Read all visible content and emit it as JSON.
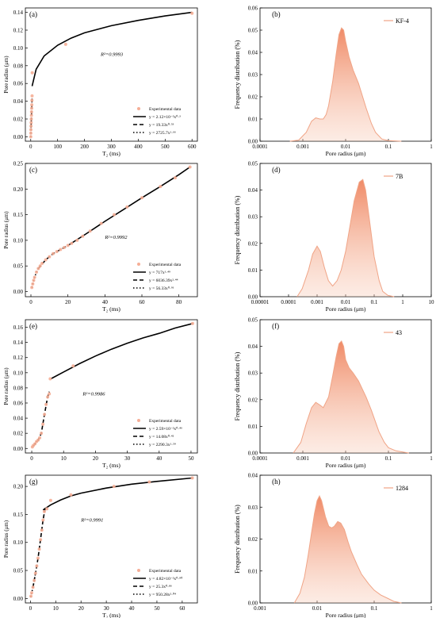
{
  "colors": {
    "marker": "#F5AE96",
    "density_fill": "#F08A66",
    "density_fill_light": "#F8C9B4",
    "density_line": "#F0A486",
    "fit_line": "#000000"
  },
  "chart_data": [
    {
      "id": "a",
      "type": "scatter",
      "panel_label": "(a)",
      "xlabel": "T₂ (ms)",
      "ylabel": "Pore radius (μm)",
      "xlim": [
        -20,
        620
      ],
      "ylim": [
        -0.005,
        0.145
      ],
      "xticks": [
        0,
        100,
        200,
        300,
        400,
        500,
        600
      ],
      "yticks": [
        0.0,
        0.02,
        0.04,
        0.06,
        0.08,
        0.1,
        0.12,
        0.14
      ],
      "ytick_decimals": 2,
      "annotation": "R²=0.9993",
      "annotation_pos": [
        260,
        0.091
      ],
      "legend": {
        "title": "Experimental data",
        "entries": [
          {
            "label": "y = 2.12×10⁻²x⁰·³",
            "style": "solid"
          },
          {
            "label": "y = 19.33x⁰·⁵³",
            "style": "dashed"
          },
          {
            "label": "y = 2725.7x¹·⁶⁶",
            "style": "dotted"
          }
        ]
      },
      "points": [
        [
          0.1,
          0.0
        ],
        [
          0.3,
          0.004
        ],
        [
          0.6,
          0.008
        ],
        [
          1,
          0.012
        ],
        [
          1.5,
          0.016
        ],
        [
          2,
          0.02
        ],
        [
          2.5,
          0.024
        ],
        [
          3,
          0.028
        ],
        [
          3.5,
          0.032
        ],
        [
          4,
          0.036
        ],
        [
          4.5,
          0.041
        ],
        [
          5,
          0.046
        ],
        [
          5.5,
          0.072
        ],
        [
          130,
          0.104
        ],
        [
          600,
          0.139
        ]
      ],
      "fits": [
        {
          "style": "solid",
          "x": [
            5,
            20,
            50,
            100,
            150,
            200,
            300,
            400,
            500,
            600
          ],
          "y": [
            0.057,
            0.076,
            0.091,
            0.103,
            0.111,
            0.117,
            0.125,
            0.131,
            0.136,
            0.14
          ]
        },
        {
          "style": "dashed",
          "x": [
            1,
            2,
            3,
            4,
            5
          ],
          "y": [
            0.01,
            0.018,
            0.026,
            0.034,
            0.044
          ]
        },
        {
          "style": "dotted",
          "x": [
            0,
            0.5,
            1,
            1.5,
            2
          ],
          "y": [
            0.0,
            0.003,
            0.007,
            0.011,
            0.016
          ]
        }
      ]
    },
    {
      "id": "b",
      "type": "area",
      "panel_label": "(b)",
      "xlabel": "Pore radius (μm)",
      "ylabel": "Frequency distribution (%)",
      "xscale": "log",
      "xlim": [
        0.0001,
        1
      ],
      "xticks": [
        0.0001,
        0.001,
        0.01,
        0.1,
        1
      ],
      "xticklabels": [
        "0.0001",
        "0.001",
        "0.01",
        "0.1",
        "1"
      ],
      "ylim": [
        0,
        0.06
      ],
      "yticks": [
        0.0,
        0.01,
        0.02,
        0.03,
        0.04,
        0.05,
        0.06
      ],
      "ytick_decimals": 2,
      "series": [
        {
          "name": "KF-4",
          "x": [
            0.0005,
            0.0008,
            0.0012,
            0.0016,
            0.002,
            0.0025,
            0.003,
            0.0035,
            0.004,
            0.005,
            0.006,
            0.007,
            0.008,
            0.009,
            0.01,
            0.012,
            0.015,
            0.02,
            0.03,
            0.04,
            0.05,
            0.07,
            0.1,
            0.2
          ],
          "y": [
            0.0,
            0.0005,
            0.004,
            0.009,
            0.0105,
            0.01,
            0.01,
            0.012,
            0.016,
            0.027,
            0.039,
            0.048,
            0.051,
            0.05,
            0.045,
            0.038,
            0.032,
            0.026,
            0.015,
            0.008,
            0.004,
            0.001,
            0.0003,
            0.0
          ]
        }
      ]
    },
    {
      "id": "c",
      "type": "scatter",
      "panel_label": "(c)",
      "xlabel": "T₂ (ms)",
      "ylabel": "Pore radius (μm)",
      "xlim": [
        -3,
        90
      ],
      "ylim": [
        -0.01,
        0.25
      ],
      "xticks": [
        0,
        20,
        40,
        60,
        80
      ],
      "yticks": [
        0.0,
        0.05,
        0.1,
        0.15,
        0.2,
        0.25
      ],
      "ytick_decimals": 2,
      "annotation": "R²=0.9992",
      "annotation_pos": [
        40,
        0.103
      ],
      "legend": {
        "title": "Experimental data",
        "entries": [
          {
            "label": "y = 717x¹·⁴⁹",
            "style": "solid"
          },
          {
            "label": "y = 6036.39x²·⁴⁴",
            "style": "dashed"
          },
          {
            "label": "y = 56.33x⁰·⁹¹",
            "style": "dotted"
          }
        ]
      },
      "points": [
        [
          0.5,
          0.008
        ],
        [
          1,
          0.015
        ],
        [
          1.5,
          0.022
        ],
        [
          2,
          0.028
        ],
        [
          3,
          0.038
        ],
        [
          4,
          0.045
        ],
        [
          5,
          0.05
        ],
        [
          6,
          0.055
        ],
        [
          8,
          0.062
        ],
        [
          10,
          0.068
        ],
        [
          12,
          0.074
        ],
        [
          14,
          0.078
        ],
        [
          16,
          0.082
        ],
        [
          18,
          0.086
        ],
        [
          20,
          0.09
        ],
        [
          22,
          0.094
        ],
        [
          25,
          0.1
        ],
        [
          28,
          0.108
        ],
        [
          32,
          0.118
        ],
        [
          38,
          0.133
        ],
        [
          45,
          0.15
        ],
        [
          52,
          0.165
        ],
        [
          60,
          0.183
        ],
        [
          70,
          0.205
        ],
        [
          78,
          0.222
        ],
        [
          86,
          0.243
        ]
      ],
      "fits": [
        {
          "style": "solid",
          "x": [
            20,
            30,
            40,
            50,
            60,
            70,
            80,
            86
          ],
          "y": [
            0.09,
            0.113,
            0.137,
            0.16,
            0.183,
            0.205,
            0.228,
            0.243
          ]
        },
        {
          "style": "dashed",
          "x": [
            4,
            8,
            12,
            16,
            20
          ],
          "y": [
            0.045,
            0.062,
            0.074,
            0.082,
            0.09
          ]
        },
        {
          "style": "dotted",
          "x": [
            0.5,
            1,
            2,
            3,
            4
          ],
          "y": [
            0.008,
            0.015,
            0.028,
            0.038,
            0.045
          ]
        }
      ]
    },
    {
      "id": "d",
      "type": "area",
      "panel_label": "(d)",
      "xlabel": "Pore radius (μm)",
      "ylabel": "Frequency distribution (%)",
      "xscale": "log",
      "xlim": [
        1e-05,
        10
      ],
      "xticks": [
        1e-05,
        0.0001,
        0.001,
        0.01,
        0.1,
        1,
        10
      ],
      "xticklabels": [
        "0.00001",
        "0.0001",
        "0.001",
        "0.01",
        "0.1",
        "1",
        "10"
      ],
      "ylim": [
        0,
        0.05
      ],
      "yticks": [
        0.0,
        0.01,
        0.02,
        0.03,
        0.04,
        0.05
      ],
      "ytick_decimals": 2,
      "series": [
        {
          "name": "7B",
          "x": [
            0.0002,
            0.0003,
            0.0005,
            0.0007,
            0.001,
            0.0013,
            0.0018,
            0.0025,
            0.0035,
            0.005,
            0.007,
            0.01,
            0.015,
            0.02,
            0.03,
            0.04,
            0.05,
            0.07,
            0.1,
            0.15,
            0.2,
            0.3,
            0.5
          ],
          "y": [
            0.0,
            0.003,
            0.01,
            0.016,
            0.019,
            0.017,
            0.011,
            0.006,
            0.004,
            0.006,
            0.01,
            0.017,
            0.028,
            0.036,
            0.043,
            0.044,
            0.04,
            0.028,
            0.015,
            0.006,
            0.002,
            0.0005,
            0.0
          ]
        }
      ]
    },
    {
      "id": "e",
      "type": "scatter",
      "panel_label": "(e)",
      "xlabel": "T₂ (ms)",
      "ylabel": "Pore radius (μm)",
      "xlim": [
        -2,
        52
      ],
      "ylim": [
        -0.006,
        0.17
      ],
      "xticks": [
        0,
        10,
        20,
        30,
        40,
        50
      ],
      "yticks": [
        0.0,
        0.02,
        0.04,
        0.06,
        0.08,
        0.1,
        0.12,
        0.14,
        0.16
      ],
      "ytick_decimals": 2,
      "annotation": "R²=0.9986",
      "annotation_pos": [
        16,
        0.07
      ],
      "legend": {
        "title": "Experimental data",
        "entries": [
          {
            "label": "y = 2.59×10⁻²x⁰·⁴⁶",
            "style": "solid"
          },
          {
            "label": "y = 14.08x⁰·⁴²",
            "style": "dashed"
          },
          {
            "label": "y = 2290.3x¹·⁵⁹",
            "style": "dotted"
          }
        ]
      },
      "points": [
        [
          0.2,
          0.002
        ],
        [
          0.5,
          0.004
        ],
        [
          1,
          0.006
        ],
        [
          1.5,
          0.009
        ],
        [
          2,
          0.011
        ],
        [
          2.5,
          0.014
        ],
        [
          3,
          0.02
        ],
        [
          3.5,
          0.032
        ],
        [
          4,
          0.045
        ],
        [
          4.5,
          0.058
        ],
        [
          5,
          0.068
        ],
        [
          5.5,
          0.072
        ],
        [
          5.8,
          0.092
        ],
        [
          13,
          0.109
        ],
        [
          50.5,
          0.165
        ]
      ],
      "fits": [
        {
          "style": "solid",
          "x": [
            6,
            10,
            15,
            20,
            25,
            30,
            35,
            40,
            45,
            50.5
          ],
          "y": [
            0.092,
            0.101,
            0.112,
            0.122,
            0.131,
            0.139,
            0.146,
            0.152,
            0.159,
            0.165
          ]
        },
        {
          "style": "dashed",
          "x": [
            0.5,
            1,
            2,
            3,
            4,
            5,
            5.5
          ],
          "y": [
            0.003,
            0.006,
            0.011,
            0.02,
            0.045,
            0.068,
            0.075
          ]
        },
        {
          "style": "dotted",
          "x": [
            0.2,
            0.5,
            1,
            1.5,
            2,
            2.5
          ],
          "y": [
            0.002,
            0.004,
            0.006,
            0.009,
            0.011,
            0.014
          ]
        }
      ]
    },
    {
      "id": "f",
      "type": "area",
      "panel_label": "(f)",
      "xlabel": "Pore radius (μm)",
      "ylabel": "Frequency distribution (%)",
      "xscale": "log",
      "xlim": [
        0.0001,
        1
      ],
      "xticks": [
        0.0001,
        0.001,
        0.01,
        0.1,
        1
      ],
      "xticklabels": [
        "0.0001",
        "0.001",
        "0.01",
        "0.1",
        "1"
      ],
      "ylim": [
        0,
        0.05
      ],
      "yticks": [
        0.0,
        0.01,
        0.02,
        0.03,
        0.04,
        0.05
      ],
      "ytick_decimals": 2,
      "series": [
        {
          "name": "43",
          "x": [
            0.0006,
            0.0009,
            0.0012,
            0.0016,
            0.002,
            0.0025,
            0.003,
            0.004,
            0.005,
            0.006,
            0.007,
            0.008,
            0.009,
            0.01,
            0.012,
            0.015,
            0.02,
            0.03,
            0.04,
            0.06,
            0.08,
            0.1,
            0.15,
            0.3
          ],
          "y": [
            0.0,
            0.004,
            0.011,
            0.017,
            0.019,
            0.018,
            0.017,
            0.021,
            0.029,
            0.036,
            0.041,
            0.042,
            0.04,
            0.035,
            0.032,
            0.03,
            0.027,
            0.021,
            0.016,
            0.008,
            0.004,
            0.002,
            0.0008,
            0.0
          ]
        }
      ]
    },
    {
      "id": "g",
      "type": "scatter",
      "panel_label": "(g)",
      "xlabel": "T₂ (ms)",
      "ylabel": "Pore radius (μm)",
      "xlim": [
        -2,
        66
      ],
      "ylim": [
        -0.008,
        0.22
      ],
      "xticks": [
        0,
        10,
        20,
        30,
        40,
        50,
        60
      ],
      "yticks": [
        0.0,
        0.05,
        0.1,
        0.15,
        0.2
      ],
      "ytick_decimals": 2,
      "annotation": "R²=0.9991",
      "annotation_pos": [
        20,
        0.137
      ],
      "legend": {
        "title": "Experimental data",
        "entries": [
          {
            "label": "y = 4.82×10⁻²x⁰·⁹⁰",
            "style": "solid"
          },
          {
            "label": "y = 25.3x⁰·⁸⁶",
            "style": "dashed"
          },
          {
            "label": "y = 950.28x²·⁰⁴",
            "style": "dotted"
          }
        ]
      },
      "points": [
        [
          0.2,
          0.004
        ],
        [
          0.5,
          0.01
        ],
        [
          1,
          0.02
        ],
        [
          1.5,
          0.032
        ],
        [
          2,
          0.045
        ],
        [
          2.5,
          0.058
        ],
        [
          3,
          0.072
        ],
        [
          3.5,
          0.088
        ],
        [
          4,
          0.105
        ],
        [
          4.5,
          0.122
        ],
        [
          5,
          0.14
        ],
        [
          5.5,
          0.155
        ],
        [
          6.5,
          0.16
        ],
        [
          8,
          0.175
        ],
        [
          16,
          0.185
        ],
        [
          33,
          0.2
        ],
        [
          47,
          0.208
        ],
        [
          64,
          0.215
        ]
      ],
      "fits": [
        {
          "style": "solid",
          "x": [
            5,
            8,
            12,
            16,
            20,
            30,
            40,
            50,
            64
          ],
          "y": [
            0.158,
            0.167,
            0.176,
            0.183,
            0.188,
            0.197,
            0.204,
            0.209,
            0.215
          ]
        },
        {
          "style": "dashed",
          "x": [
            1,
            2,
            3,
            4,
            5,
            6
          ],
          "y": [
            0.02,
            0.045,
            0.072,
            0.105,
            0.14,
            0.165
          ]
        },
        {
          "style": "dotted",
          "x": [
            0.1,
            0.5,
            1,
            1.5,
            2
          ],
          "y": [
            0.002,
            0.01,
            0.02,
            0.032,
            0.045
          ]
        }
      ]
    },
    {
      "id": "h",
      "type": "area",
      "panel_label": "(h)",
      "xlabel": "Pore radius (μm)",
      "ylabel": "Frequency distribution (%)",
      "xscale": "log",
      "xlim": [
        0.001,
        1
      ],
      "xticks": [
        0.001,
        0.01,
        0.1,
        1
      ],
      "xticklabels": [
        "0.001",
        "0.01",
        "0.1",
        "1"
      ],
      "ylim": [
        0,
        0.04
      ],
      "yticks": [
        0.0,
        0.01,
        0.02,
        0.03,
        0.04
      ],
      "ytick_decimals": 2,
      "series": [
        {
          "name": "1284",
          "x": [
            0.004,
            0.005,
            0.006,
            0.007,
            0.008,
            0.009,
            0.01,
            0.011,
            0.012,
            0.014,
            0.016,
            0.018,
            0.02,
            0.023,
            0.026,
            0.03,
            0.035,
            0.04,
            0.05,
            0.06,
            0.08,
            0.1,
            0.13,
            0.17,
            0.22,
            0.3
          ],
          "y": [
            0.0,
            0.003,
            0.008,
            0.015,
            0.022,
            0.028,
            0.032,
            0.0335,
            0.032,
            0.027,
            0.024,
            0.0235,
            0.024,
            0.0255,
            0.025,
            0.023,
            0.019,
            0.016,
            0.012,
            0.009,
            0.006,
            0.004,
            0.0025,
            0.0015,
            0.0005,
            0.0
          ]
        }
      ]
    }
  ]
}
